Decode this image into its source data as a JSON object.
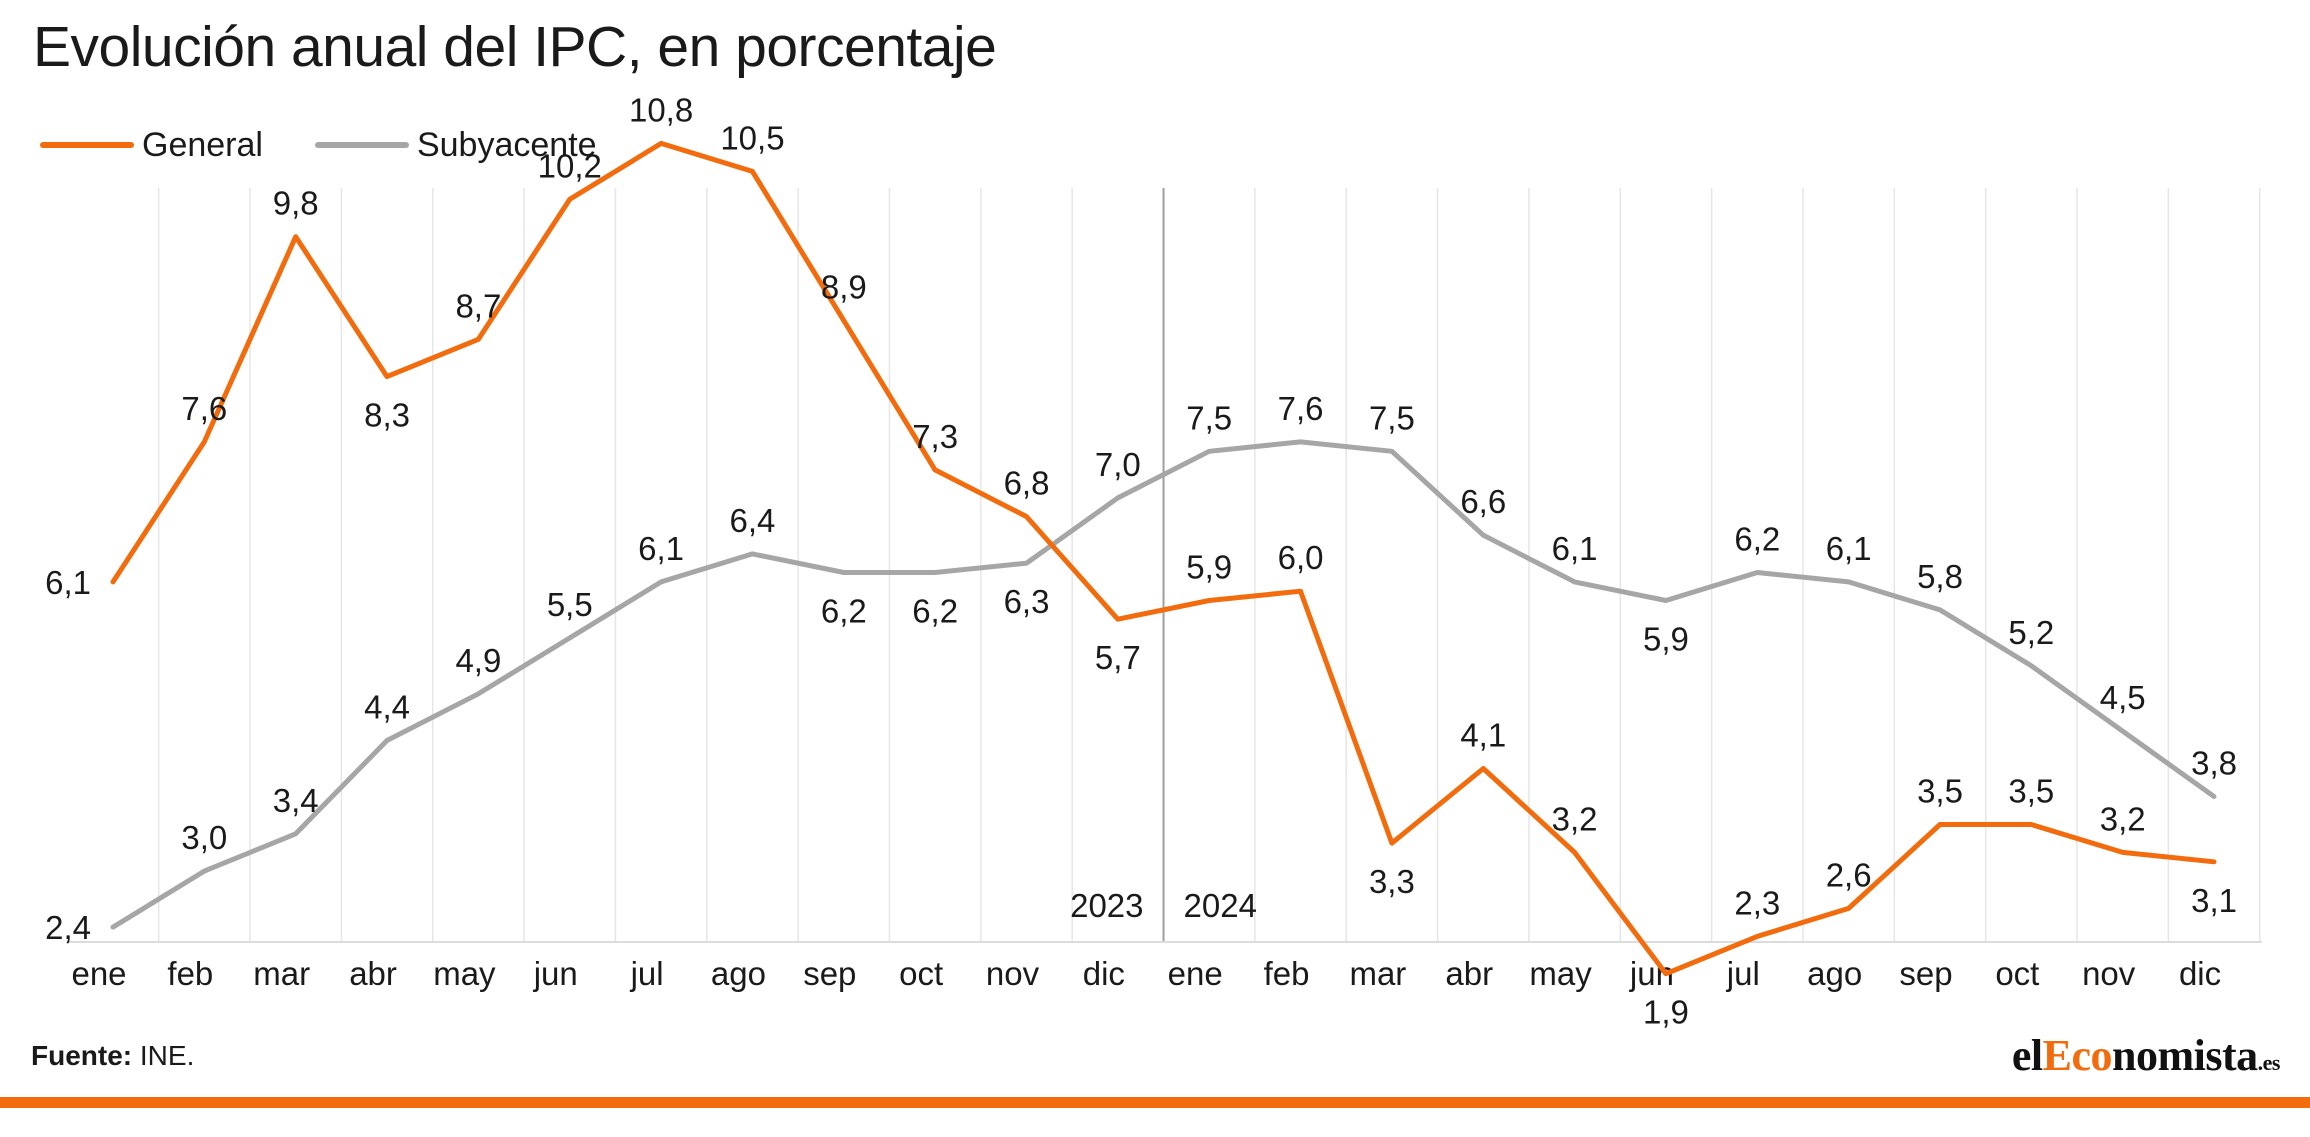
{
  "title": "Evolución anual del IPC, en porcentaje",
  "legend": [
    {
      "label": "General",
      "color": "#f26c0d"
    },
    {
      "label": "Subyacente",
      "color": "#a6a6a6"
    }
  ],
  "source": {
    "label": "Fuente:",
    "value": "INE."
  },
  "logo": {
    "part1": "el",
    "accent": "Eco",
    "part2": "nomista",
    "tld": ".es"
  },
  "chart_data": {
    "type": "line",
    "categories": [
      "ene",
      "feb",
      "mar",
      "abr",
      "may",
      "jun",
      "jul",
      "ago",
      "sep",
      "oct",
      "nov",
      "dic",
      "ene",
      "feb",
      "mar",
      "abr",
      "may",
      "jun",
      "jul",
      "ago",
      "sep",
      "oct",
      "nov",
      "dic"
    ],
    "year_labels": [
      "2023",
      "2024"
    ],
    "series": [
      {
        "name": "General",
        "color": "#f26c0d",
        "values": [
          6.1,
          7.6,
          9.8,
          8.3,
          8.7,
          10.2,
          10.8,
          10.5,
          8.9,
          7.3,
          6.8,
          5.7,
          5.9,
          6.0,
          3.3,
          4.1,
          3.2,
          1.9,
          2.3,
          2.6,
          3.5,
          3.5,
          3.2,
          3.1
        ],
        "labels": [
          "6,1",
          "7,6",
          "9,8",
          "8,3",
          "8,7",
          "10,2",
          "10,8",
          "10,5",
          "8,9",
          "7,3",
          "6,8",
          "5,7",
          "5,9",
          "6,0",
          "3,3",
          "4,1",
          "3,2",
          "1,9",
          "2,3",
          "2,6",
          "3,5",
          "3,5",
          "3,2",
          "3,1"
        ]
      },
      {
        "name": "Subyacente",
        "color": "#a6a6a6",
        "values": [
          2.4,
          3.0,
          3.4,
          4.4,
          4.9,
          5.5,
          6.1,
          6.4,
          6.2,
          6.2,
          6.3,
          7.0,
          7.5,
          7.6,
          7.5,
          6.6,
          6.1,
          5.9,
          6.2,
          6.1,
          5.8,
          5.2,
          4.5,
          3.8
        ],
        "labels": [
          "2,4",
          "3,0",
          "3,4",
          "4,4",
          "4,9",
          "5,5",
          "6,1",
          "6,4",
          "6,2",
          "6,2",
          "6,3",
          "7,0",
          "7,5",
          "7,6",
          "7,5",
          "6,6",
          "6,1",
          "5,9",
          "6,2",
          "6,1",
          "5,8",
          "5,2",
          "4,5",
          "3,8"
        ]
      }
    ],
    "ylim": [
      0,
      12
    ],
    "grid": true,
    "legend_position": "top-left"
  }
}
